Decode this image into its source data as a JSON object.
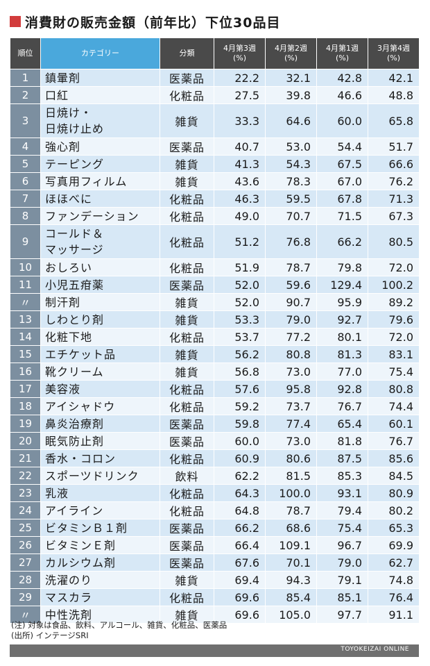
{
  "title": "消費財の販売金額（前年比）下位30品目",
  "headers": {
    "rank": "順位",
    "category": "カテゴリー",
    "type": "分類",
    "w1_l1": "4月第3週",
    "w1_l2": "(%)",
    "w2_l1": "4月第2週",
    "w2_l2": "(%)",
    "w3_l1": "4月第1週",
    "w3_l2": "(%)",
    "w4_l1": "3月第4週",
    "w4_l2": "(%)"
  },
  "rows": [
    {
      "rank": "1",
      "name": "鎮暈剤",
      "type": "医薬品",
      "v": [
        "22.2",
        "32.1",
        "42.8",
        "42.1"
      ]
    },
    {
      "rank": "2",
      "name": "口紅",
      "type": "化粧品",
      "v": [
        "27.5",
        "39.8",
        "46.6",
        "48.8"
      ]
    },
    {
      "rank": "3",
      "name": "日焼け・\n日焼け止め",
      "type": "雑貨",
      "v": [
        "33.3",
        "64.6",
        "60.0",
        "65.8"
      ]
    },
    {
      "rank": "4",
      "name": "強心剤",
      "type": "医薬品",
      "v": [
        "40.7",
        "53.0",
        "54.4",
        "51.7"
      ]
    },
    {
      "rank": "5",
      "name": "テーピング",
      "type": "雑貨",
      "v": [
        "41.3",
        "54.3",
        "67.5",
        "66.6"
      ]
    },
    {
      "rank": "6",
      "name": "写真用フィルム",
      "type": "雑貨",
      "v": [
        "43.6",
        "78.3",
        "67.0",
        "76.2"
      ]
    },
    {
      "rank": "7",
      "name": "ほほべに",
      "type": "化粧品",
      "v": [
        "46.3",
        "59.5",
        "67.8",
        "71.3"
      ]
    },
    {
      "rank": "8",
      "name": "ファンデーション",
      "type": "化粧品",
      "v": [
        "49.0",
        "70.7",
        "71.5",
        "67.3"
      ]
    },
    {
      "rank": "9",
      "name": "コールド＆\nマッサージ",
      "type": "化粧品",
      "v": [
        "51.2",
        "76.8",
        "66.2",
        "80.5"
      ]
    },
    {
      "rank": "10",
      "name": "おしろい",
      "type": "化粧品",
      "v": [
        "51.9",
        "78.7",
        "79.8",
        "72.0"
      ]
    },
    {
      "rank": "11",
      "name": "小児五疳薬",
      "type": "医薬品",
      "v": [
        "52.0",
        "59.6",
        "129.4",
        "100.2"
      ]
    },
    {
      "rank": "〃",
      "name": "制汗剤",
      "type": "雑貨",
      "v": [
        "52.0",
        "90.7",
        "95.9",
        "89.2"
      ]
    },
    {
      "rank": "13",
      "name": "しわとり剤",
      "type": "雑貨",
      "v": [
        "53.3",
        "79.0",
        "92.7",
        "79.6"
      ]
    },
    {
      "rank": "14",
      "name": "化粧下地",
      "type": "化粧品",
      "v": [
        "53.7",
        "77.2",
        "80.1",
        "72.0"
      ]
    },
    {
      "rank": "15",
      "name": "エチケット品",
      "type": "雑貨",
      "v": [
        "56.2",
        "80.8",
        "81.3",
        "83.1"
      ]
    },
    {
      "rank": "16",
      "name": "靴クリーム",
      "type": "雑貨",
      "v": [
        "56.8",
        "73.0",
        "77.0",
        "75.4"
      ]
    },
    {
      "rank": "17",
      "name": "美容液",
      "type": "化粧品",
      "v": [
        "57.6",
        "95.8",
        "92.8",
        "80.8"
      ]
    },
    {
      "rank": "18",
      "name": "アイシャドウ",
      "type": "化粧品",
      "v": [
        "59.2",
        "73.7",
        "76.7",
        "74.4"
      ]
    },
    {
      "rank": "19",
      "name": "鼻炎治療剤",
      "type": "医薬品",
      "v": [
        "59.8",
        "77.4",
        "65.4",
        "60.1"
      ]
    },
    {
      "rank": "20",
      "name": "眠気防止剤",
      "type": "医薬品",
      "v": [
        "60.0",
        "73.0",
        "81.8",
        "76.7"
      ]
    },
    {
      "rank": "21",
      "name": "香水・コロン",
      "type": "化粧品",
      "v": [
        "60.9",
        "80.6",
        "87.5",
        "85.6"
      ]
    },
    {
      "rank": "22",
      "name": "スポーツドリンク",
      "type": "飲料",
      "v": [
        "62.2",
        "81.5",
        "85.3",
        "84.5"
      ]
    },
    {
      "rank": "23",
      "name": "乳液",
      "type": "化粧品",
      "v": [
        "64.3",
        "100.0",
        "93.1",
        "80.9"
      ]
    },
    {
      "rank": "24",
      "name": "アイライン",
      "type": "化粧品",
      "v": [
        "64.8",
        "78.7",
        "79.4",
        "80.2"
      ]
    },
    {
      "rank": "25",
      "name": "ビタミンＢ１剤",
      "type": "医薬品",
      "v": [
        "66.2",
        "68.6",
        "75.4",
        "65.3"
      ]
    },
    {
      "rank": "26",
      "name": "ビタミンＥ剤",
      "type": "医薬品",
      "v": [
        "66.4",
        "109.1",
        "96.7",
        "69.9"
      ]
    },
    {
      "rank": "27",
      "name": "カルシウム剤",
      "type": "医薬品",
      "v": [
        "67.6",
        "70.1",
        "79.0",
        "62.7"
      ]
    },
    {
      "rank": "28",
      "name": "洗濯のり",
      "type": "雑貨",
      "v": [
        "69.4",
        "94.3",
        "79.1",
        "74.8"
      ]
    },
    {
      "rank": "29",
      "name": "マスカラ",
      "type": "化粧品",
      "v": [
        "69.6",
        "85.4",
        "85.1",
        "76.4"
      ]
    },
    {
      "rank": "〃",
      "name": "中性洗剤",
      "type": "雑貨",
      "v": [
        "69.6",
        "105.0",
        "97.7",
        "91.1"
      ]
    }
  ],
  "notes": {
    "line1": "(注) 対象は食品、飲料、アルコール、雑貨、化粧品、医薬品",
    "line2": "(出所) インテージSRI"
  },
  "footer": {
    "brand": "TOYOKEIZAI ONLINE"
  },
  "colors": {
    "accent": "#d23c3c",
    "header_dark": "#4a4a4a",
    "header_blue": "#4aa8dc",
    "rank_cell": "#7c8fa0",
    "row_odd": "#d7e8f6",
    "row_even": "#eef5fb"
  }
}
